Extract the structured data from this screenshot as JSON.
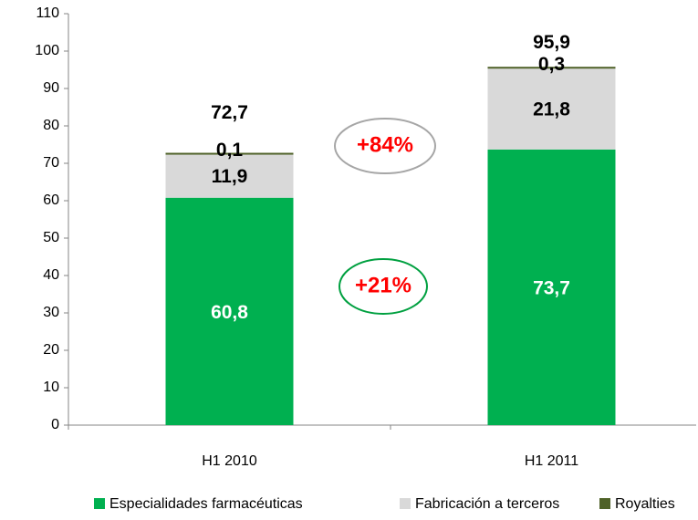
{
  "chart_data": {
    "type": "stacked_bar",
    "categories": [
      "H1 2010",
      "H1 2011"
    ],
    "series": [
      {
        "name": "Especialidades farmacéuticas",
        "color": "#00b050",
        "values": [
          60.8,
          73.7
        ],
        "value_labels": [
          "60,8",
          "73,7"
        ]
      },
      {
        "name": "Fabricación a terceros",
        "color": "#d9d9d9",
        "values": [
          11.9,
          21.8
        ],
        "value_labels": [
          "11,9",
          "21,8"
        ]
      },
      {
        "name": "Royalties",
        "color": "#4f6228",
        "values": [
          0.1,
          0.3
        ],
        "value_labels": [
          "0,1",
          "0,3"
        ]
      }
    ],
    "totals": [
      72.7,
      95.9
    ],
    "total_labels": [
      "72,7",
      "95,9"
    ],
    "annotations": [
      "+84%",
      "+21%"
    ],
    "ylim": [
      0,
      110
    ],
    "yticks": [
      0,
      10,
      20,
      30,
      40,
      50,
      60,
      70,
      80,
      90,
      100,
      110
    ],
    "legend": "bottom"
  }
}
